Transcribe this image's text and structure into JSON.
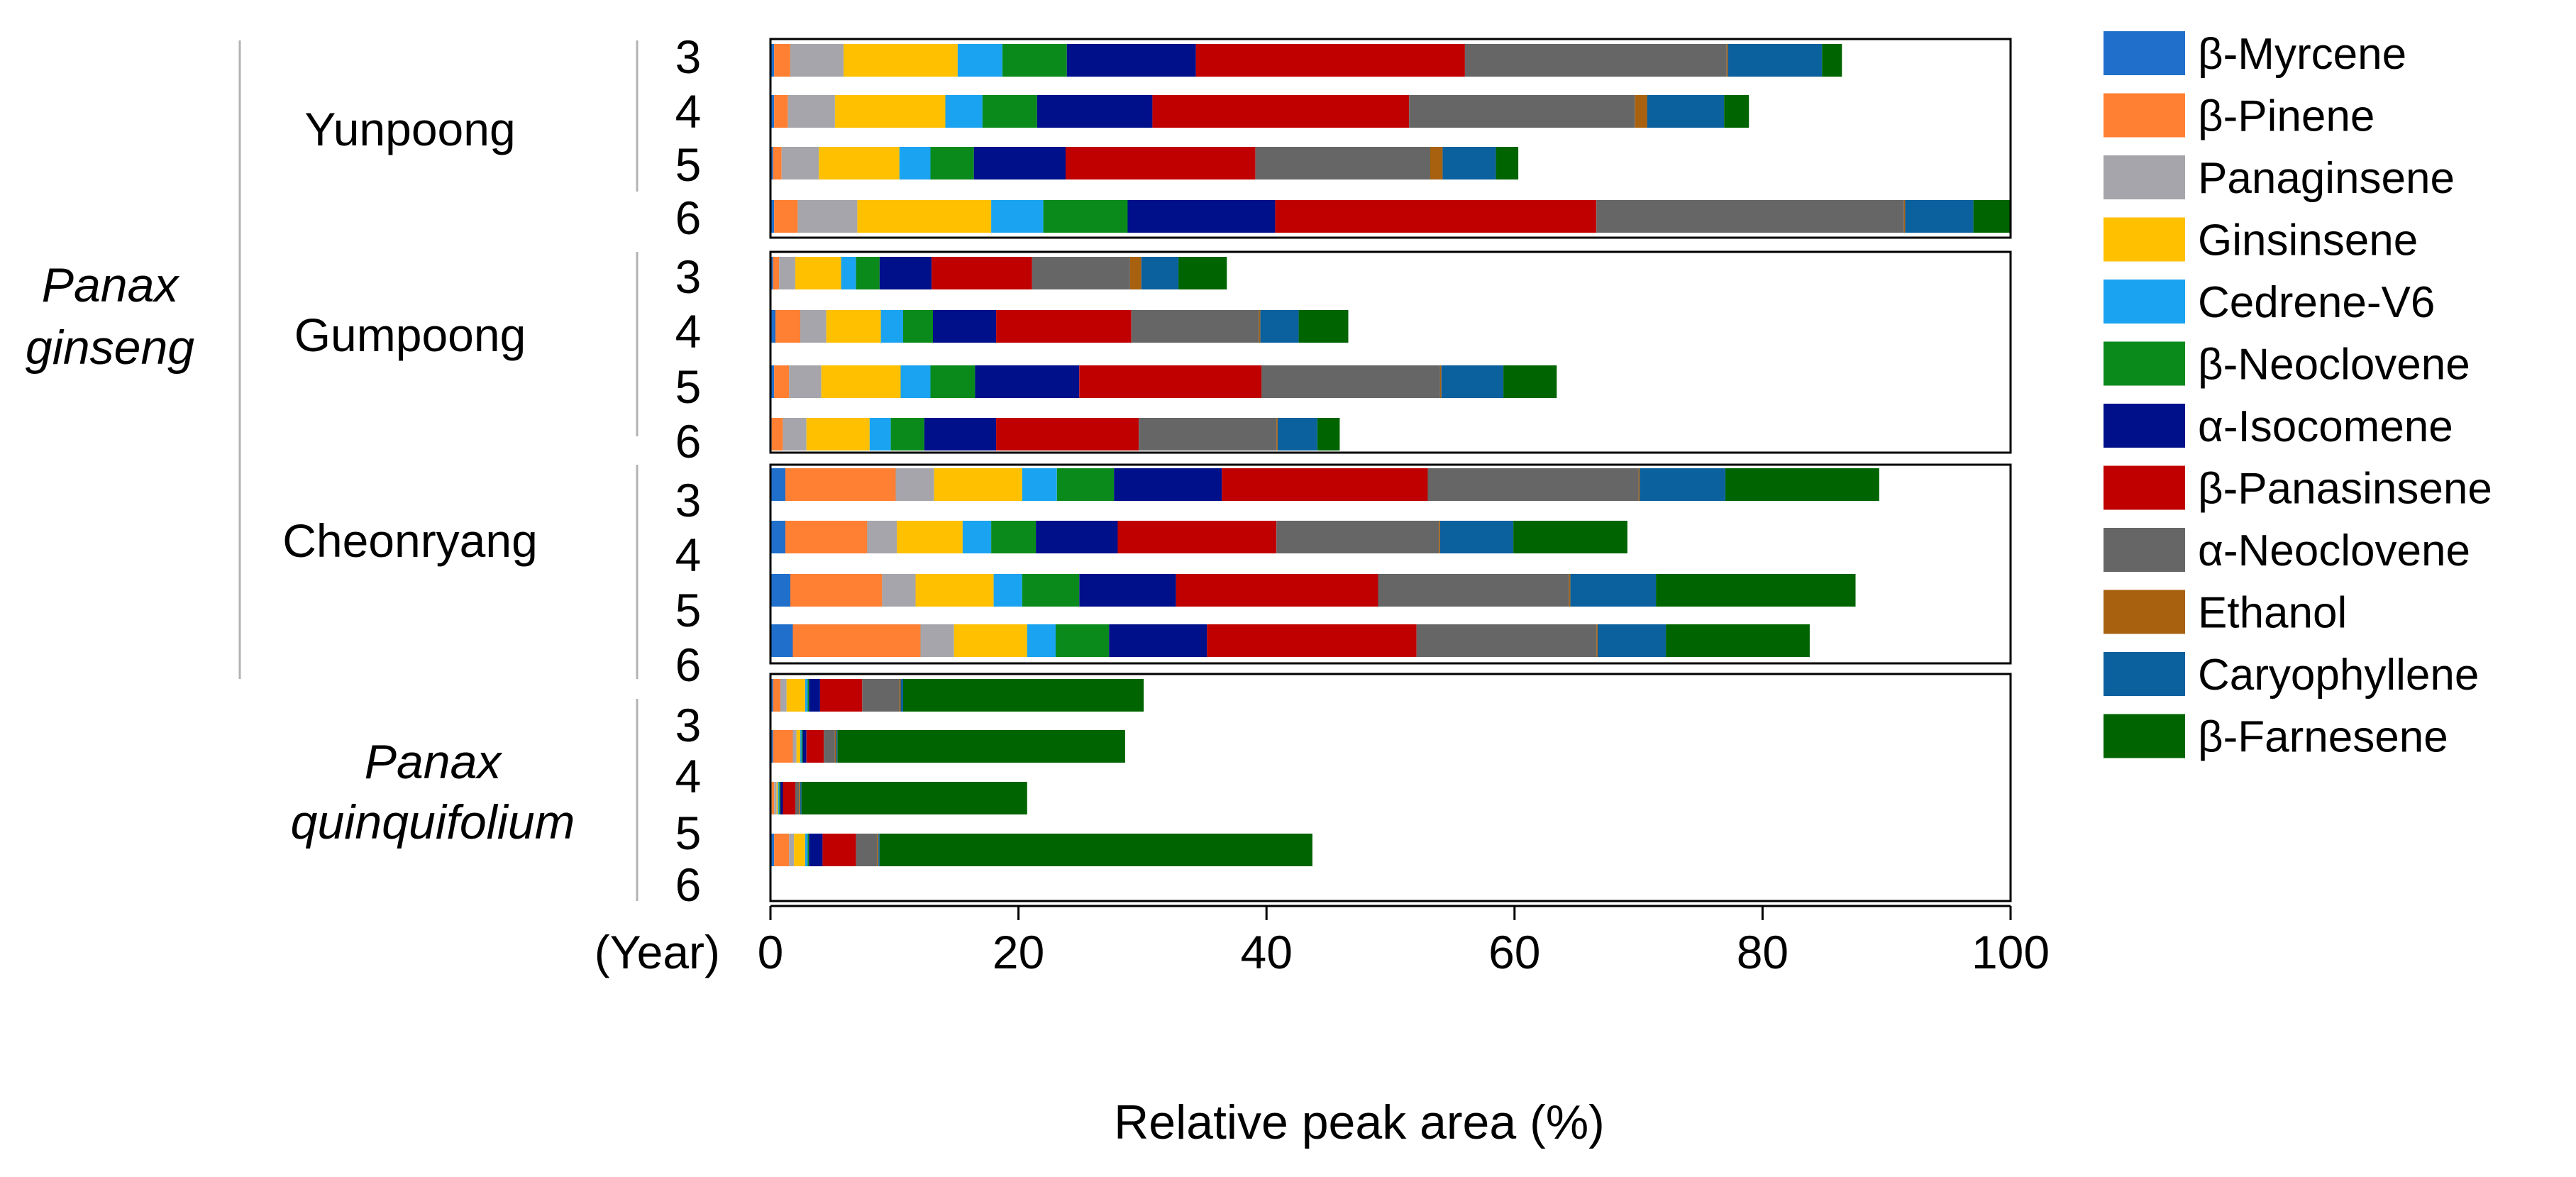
{
  "chart_data": {
    "type": "bar",
    "orientation": "horizontal",
    "stacked": true,
    "xlabel": "Relative peak area (%)",
    "xlim": [
      0,
      100
    ],
    "xticks": [
      0,
      20,
      40,
      60,
      80,
      100
    ],
    "year_axis_label": "(Year)",
    "species": [
      {
        "label_lines": [
          "Panax",
          "ginseng"
        ]
      },
      {
        "label_lines": [
          "Panax",
          "quinquifolium"
        ]
      }
    ],
    "series": [
      {
        "name": "β-Myrcene",
        "color": "#1F6FCB"
      },
      {
        "name": "β-Pinene",
        "color": "#FF8033"
      },
      {
        "name": "Panaginsene",
        "color": "#A5A5AB"
      },
      {
        "name": "Ginsinsene",
        "color": "#FFC000"
      },
      {
        "name": "Cedrene-V6",
        "color": "#1AA3F0"
      },
      {
        "name": "β-Neoclovene",
        "color": "#0B8A1C"
      },
      {
        "name": "α-Isocomene",
        "color": "#000F8A"
      },
      {
        "name": "β-Panasinsene",
        "color": "#C00000"
      },
      {
        "name": "α-Neoclovene",
        "color": "#666666"
      },
      {
        "name": "Ethanol",
        "color": "#A8620F"
      },
      {
        "name": "Caryophyllene",
        "color": "#0B609E"
      },
      {
        "name": "β-Farnesene",
        "color": "#006400"
      }
    ],
    "groups": [
      {
        "name": "Yunpoong",
        "years": [
          "3",
          "4",
          "5",
          "6"
        ],
        "bars": [
          [
            0.3,
            1.3,
            4.3,
            9.2,
            3.6,
            5.2,
            10.4,
            21.7,
            21.1,
            0.1,
            7.6,
            1.6
          ],
          [
            0.3,
            1.1,
            3.8,
            8.9,
            3.0,
            4.4,
            9.3,
            20.7,
            18.2,
            1.0,
            6.2,
            2.0
          ],
          [
            0.2,
            0.7,
            3.0,
            6.5,
            2.5,
            3.5,
            7.4,
            15.3,
            14.1,
            1.0,
            4.3,
            1.8
          ],
          [
            0.3,
            1.9,
            4.8,
            10.8,
            4.2,
            6.8,
            11.9,
            25.9,
            24.8,
            0.1,
            5.5,
            3.0
          ]
        ]
      },
      {
        "name": "Gumpoong",
        "years": [
          "3",
          "4",
          "5",
          "6"
        ],
        "bars": [
          [
            0.2,
            0.5,
            1.3,
            3.7,
            1.2,
            1.9,
            4.2,
            8.1,
            7.9,
            0.9,
            3.0,
            3.9
          ],
          [
            0.4,
            2.0,
            2.1,
            4.4,
            1.8,
            2.4,
            5.1,
            10.9,
            10.3,
            0.1,
            3.1,
            4.0
          ],
          [
            0.3,
            1.2,
            2.6,
            6.4,
            2.4,
            3.6,
            8.4,
            14.7,
            14.4,
            0.1,
            5.0,
            4.3
          ],
          [
            0.1,
            0.9,
            1.9,
            5.1,
            1.7,
            2.7,
            5.8,
            11.5,
            11.1,
            0.1,
            3.2,
            1.8
          ]
        ]
      },
      {
        "name": "Cheonryang",
        "years": [
          "3",
          "4",
          "5",
          "6"
        ],
        "bars": [
          [
            1.2,
            8.9,
            3.1,
            7.1,
            2.8,
            4.6,
            8.7,
            16.6,
            17.0,
            0.1,
            6.9,
            12.4
          ],
          [
            1.2,
            6.6,
            2.4,
            5.3,
            2.3,
            3.6,
            6.6,
            12.8,
            13.1,
            0.1,
            5.9,
            9.2
          ],
          [
            1.6,
            7.4,
            2.7,
            6.3,
            2.3,
            4.6,
            7.8,
            16.3,
            15.4,
            0.1,
            6.9,
            16.1
          ],
          [
            1.8,
            10.3,
            2.7,
            5.9,
            2.3,
            4.3,
            7.9,
            16.9,
            14.5,
            0.1,
            5.5,
            11.6
          ]
        ]
      },
      {
        "name": "",
        "years": [
          "3",
          "4",
          "5",
          "6"
        ],
        "bars": [
          [
            0.2,
            0.6,
            0.5,
            1.5,
            0.2,
            0.1,
            0.9,
            3.4,
            3.0,
            0.1,
            0.2,
            19.4
          ],
          [
            0.2,
            1.6,
            0.3,
            0.3,
            0.1,
            0.1,
            0.3,
            1.4,
            0.9,
            0.1,
            0.1,
            23.2
          ],
          [
            0.1,
            0.2,
            0.2,
            0.1,
            0.1,
            0.1,
            0.2,
            1.0,
            0.3,
            0.1,
            0.1,
            18.2
          ],
          [
            0.3,
            1.2,
            0.4,
            0.9,
            0.2,
            0.1,
            1.1,
            2.7,
            1.7,
            0.1,
            0.1,
            34.9
          ]
        ]
      }
    ]
  }
}
